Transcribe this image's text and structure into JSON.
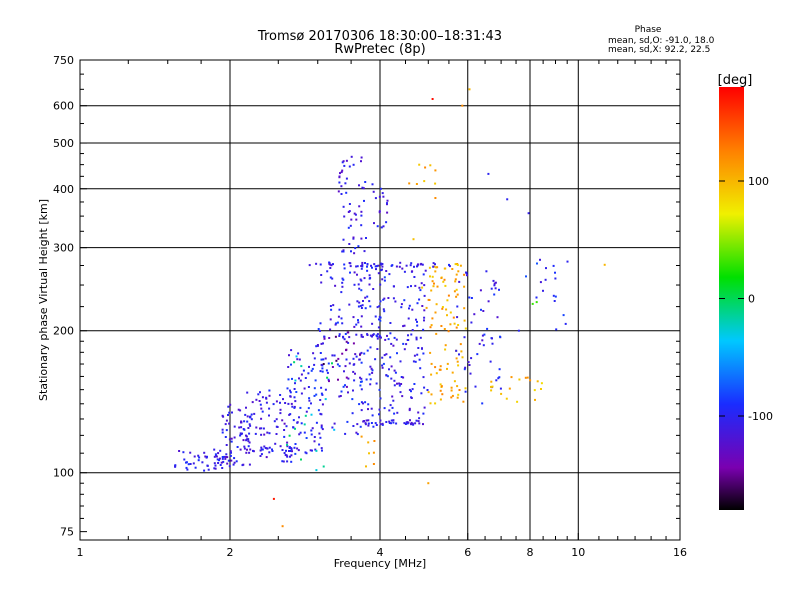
{
  "chart_data": {
    "type": "scatter",
    "title": "Tromsø 20170306 18:30:00–18:31:43",
    "subtitle": "RwPretec (8p)",
    "stats": {
      "heading": "Phase",
      "line1": "mean, sd,O: -91.0, 18.0",
      "line2": "mean, sd,X:  92.2, 22.5"
    },
    "xlabel": "Frequency [MHz]",
    "ylabel": "Stationary phase Virtual Height [km]",
    "x_scale": "log",
    "y_scale": "log",
    "xlim": [
      1,
      16
    ],
    "ylim": [
      72,
      750
    ],
    "x_ticks": [
      {
        "value": 1,
        "label": "1"
      },
      {
        "value": 2,
        "label": "2"
      },
      {
        "value": 4,
        "label": "4"
      },
      {
        "value": 6,
        "label": "6"
      },
      {
        "value": 8,
        "label": "8"
      },
      {
        "value": 10,
        "label": "10"
      },
      {
        "value": 16,
        "label": "16"
      }
    ],
    "y_ticks": [
      {
        "value": 75,
        "label": "75"
      },
      {
        "value": 100,
        "label": "100"
      },
      {
        "value": 200,
        "label": "200"
      },
      {
        "value": 300,
        "label": "300"
      },
      {
        "value": 400,
        "label": "400"
      },
      {
        "value": 500,
        "label": "500"
      },
      {
        "value": 600,
        "label": "600"
      },
      {
        "value": 750,
        "label": "750"
      }
    ],
    "x_gridlines": [
      2,
      4,
      6,
      8,
      10
    ],
    "y_gridlines": [
      100,
      200,
      300,
      400,
      500,
      600
    ],
    "grid": true,
    "colorbar": {
      "title": "[deg]",
      "min": -180,
      "max": 180,
      "ticks": [
        {
          "value": 100,
          "label": "100"
        },
        {
          "value": 0,
          "label": "0"
        },
        {
          "value": -100,
          "label": "-100"
        }
      ],
      "colormap": [
        "#000000",
        "#7a00b0",
        "#1a2cff",
        "#00c8ff",
        "#00e000",
        "#f0f000",
        "#ff8000",
        "#ff0000"
      ]
    },
    "clusters": [
      {
        "x": [
          1.55,
          1.95
        ],
        "y": [
          100,
          112
        ],
        "phase": -105,
        "n": 45
      },
      {
        "x": [
          1.9,
          2.2
        ],
        "y": [
          103,
          140
        ],
        "phase": -110,
        "n": 75
      },
      {
        "x": [
          2.15,
          2.7
        ],
        "y": [
          105,
          150
        ],
        "phase": -108,
        "n": 85
      },
      {
        "x": [
          2.6,
          3.1
        ],
        "y": [
          108,
          190
        ],
        "phase": -100,
        "n": 85
      },
      {
        "x": [
          3.0,
          3.7
        ],
        "y": [
          120,
          280
        ],
        "phase": -102,
        "n": 110
      },
      {
        "x": [
          3.3,
          3.75
        ],
        "y": [
          290,
          470
        ],
        "phase": -108,
        "n": 55
      },
      {
        "x": [
          3.6,
          4.2
        ],
        "y": [
          125,
          280
        ],
        "phase": -100,
        "n": 110
      },
      {
        "x": [
          3.85,
          4.15
        ],
        "y": [
          330,
          410
        ],
        "phase": -108,
        "n": 18
      },
      {
        "x": [
          4.2,
          5.0
        ],
        "y": [
          125,
          280
        ],
        "phase": -104,
        "n": 110
      },
      {
        "x": [
          5.0,
          5.95
        ],
        "y": [
          140,
          280
        ],
        "phase": 105,
        "n": 100
      },
      {
        "x": [
          5.6,
          7.0
        ],
        "y": [
          140,
          270
        ],
        "phase": -102,
        "n": 55
      },
      {
        "x": [
          6.5,
          8.5
        ],
        "y": [
          140,
          160
        ],
        "phase": 100,
        "n": 18
      },
      {
        "x": [
          7.8,
          9.6
        ],
        "y": [
          200,
          290
        ],
        "phase": -95,
        "n": 18
      },
      {
        "x": [
          2.6,
          3.3
        ],
        "y": [
          100,
          180
        ],
        "phase": -20,
        "n": 18
      },
      {
        "x": [
          4.5,
          5.2
        ],
        "y": [
          200,
          460
        ],
        "phase": 110,
        "n": 14
      },
      {
        "x": [
          3.6,
          3.9
        ],
        "y": [
          100,
          120
        ],
        "phase": 110,
        "n": 7
      },
      {
        "x": [
          3.0,
          3.7
        ],
        "y": [
          150,
          200
        ],
        "phase": -150,
        "n": 18
      }
    ],
    "line_clusters": [
      {
        "x": [
          2.85,
          5.6
        ],
        "y": 276,
        "phase": -105,
        "n": 45
      },
      {
        "x": [
          3.3,
          4.2
        ],
        "y": 195,
        "phase": -105,
        "n": 22
      },
      {
        "x": [
          3.7,
          4.8
        ],
        "y": 128,
        "phase": -105,
        "n": 28
      },
      {
        "x": [
          2.2,
          3.0
        ],
        "y": 112,
        "phase": -105,
        "n": 22
      }
    ],
    "outlier_points": [
      {
        "x": 5.1,
        "y": 620,
        "phase": 175
      },
      {
        "x": 5.85,
        "y": 600,
        "phase": 120
      },
      {
        "x": 6.05,
        "y": 650,
        "phase": 100
      },
      {
        "x": 2.45,
        "y": 88,
        "phase": 170
      },
      {
        "x": 2.55,
        "y": 77,
        "phase": 120
      },
      {
        "x": 5.0,
        "y": 95,
        "phase": 110
      },
      {
        "x": 7.95,
        "y": 355,
        "phase": -105
      },
      {
        "x": 11.3,
        "y": 276,
        "phase": 100
      },
      {
        "x": 6.6,
        "y": 430,
        "phase": -100
      },
      {
        "x": 7.6,
        "y": 200,
        "phase": -100
      },
      {
        "x": 8.1,
        "y": 228,
        "phase": 30
      },
      {
        "x": 8.25,
        "y": 230,
        "phase": 30
      },
      {
        "x": 7.2,
        "y": 380,
        "phase": -100
      }
    ]
  }
}
